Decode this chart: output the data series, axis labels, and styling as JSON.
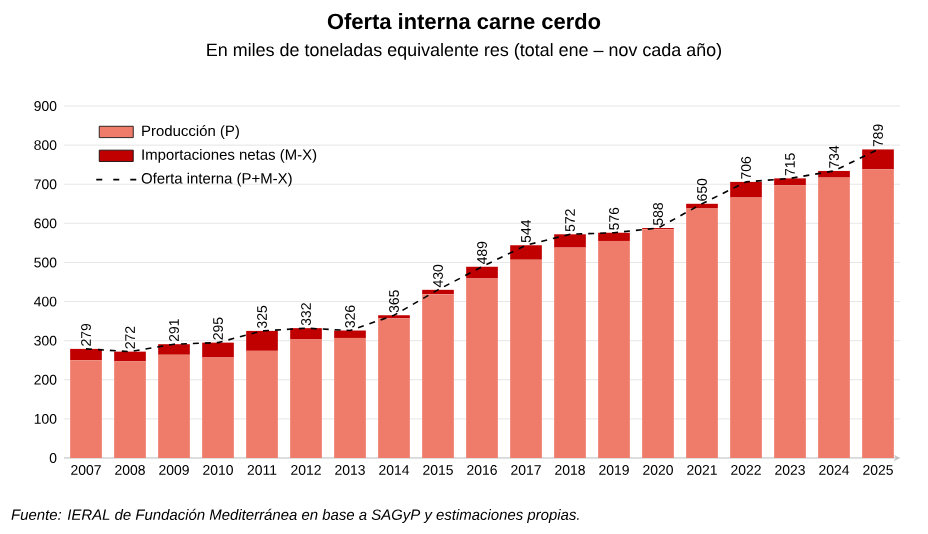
{
  "chart_data": {
    "type": "bar",
    "title": "Oferta interna carne cerdo",
    "subtitle": "En miles de toneladas equivalente res (total ene – nov cada año)",
    "categories": [
      "2007",
      "2008",
      "2009",
      "2010",
      "2011",
      "2012",
      "2013",
      "2014",
      "2015",
      "2016",
      "2017",
      "2018",
      "2019",
      "2020",
      "2021",
      "2022",
      "2023",
      "2024",
      "2025"
    ],
    "stacked": true,
    "series": [
      {
        "name": "Producción (P)",
        "color": "#ef7b6a",
        "values": [
          250,
          247,
          264,
          257,
          274,
          303,
          307,
          357,
          419,
          459,
          507,
          538,
          555,
          585,
          638,
          666,
          697,
          717,
          738
        ]
      },
      {
        "name": "Importaciones netas (M-X)",
        "color": "#c00000",
        "values": [
          29,
          25,
          27,
          38,
          51,
          29,
          19,
          8,
          11,
          30,
          37,
          34,
          21,
          3,
          12,
          40,
          18,
          17,
          51
        ]
      },
      {
        "name": "Oferta interna (P+M-X)",
        "type": "line",
        "color": "#000000",
        "line_style": "dashed",
        "marker": "none",
        "values": [
          279,
          272,
          291,
          295,
          325,
          332,
          326,
          365,
          430,
          489,
          544,
          572,
          576,
          588,
          650,
          706,
          715,
          734,
          789
        ]
      }
    ],
    "totals": [
      "279",
      "272",
      "291",
      "295",
      "325",
      "332",
      "326",
      "365",
      "430",
      "489",
      "544",
      "572",
      "576",
      "588",
      "650",
      "706",
      "715",
      "734",
      "789"
    ],
    "ylim": [
      0,
      900
    ],
    "yticks": [
      0,
      100,
      200,
      300,
      400,
      500,
      600,
      700,
      800,
      900
    ],
    "grid": "y",
    "legend": "top left",
    "annotations": [
      "Fuente: IERAL de Fundación Mediterránea en base a SAGyP y estimaciones propias."
    ]
  }
}
